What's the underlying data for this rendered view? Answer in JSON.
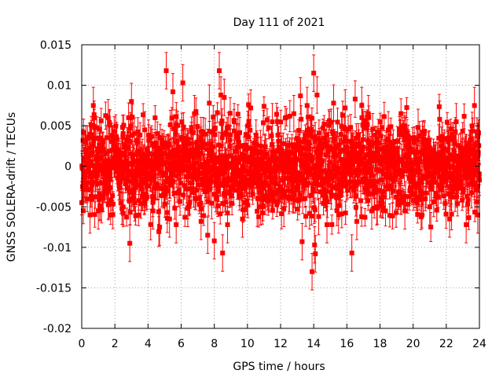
{
  "chart_data": {
    "type": "scatter",
    "title": "Day 111 of 2021",
    "xlabel": "GPS time / hours",
    "ylabel": "GNSS SOLERA-drift / TECUs",
    "xlim": [
      0,
      24
    ],
    "ylim": [
      -0.02,
      0.015
    ],
    "x_ticks": [
      0,
      2,
      4,
      6,
      8,
      10,
      12,
      14,
      16,
      18,
      20,
      22,
      24
    ],
    "x_tick_labels": [
      "0",
      "2",
      "4",
      "6",
      "8",
      "10",
      "12",
      "14",
      "16",
      "18",
      "20",
      "22",
      "24"
    ],
    "y_ticks": [
      -0.02,
      -0.015,
      -0.01,
      -0.005,
      0,
      0.005,
      0.01,
      0.015
    ],
    "y_tick_labels": [
      "-0.02",
      "-0.015",
      "-0.01",
      "-0.005",
      "0",
      "0.005",
      "0.01",
      "0.015"
    ],
    "grid": true,
    "error_bars": true,
    "series": [
      {
        "color": "#ff0000",
        "marker": "square",
        "sampling": "dense, approximately every 30 s across the full day; only notable visible outliers are listed",
        "typical_envelope": [
          -0.006,
          0.006
        ],
        "typical_error_bar": 0.0015,
        "points": [
          {
            "x": 0.5,
            "y": -0.006
          },
          {
            "x": 0.7,
            "y": 0.0075
          },
          {
            "x": 1.0,
            "y": -0.0055
          },
          {
            "x": 1.6,
            "y": 0.006
          },
          {
            "x": 2.5,
            "y": -0.005
          },
          {
            "x": 2.9,
            "y": -0.0095
          },
          {
            "x": 3.0,
            "y": 0.008
          },
          {
            "x": 3.2,
            "y": -0.0045
          },
          {
            "x": 3.8,
            "y": 0.0045
          },
          {
            "x": 4.3,
            "y": -0.0055
          },
          {
            "x": 4.7,
            "y": -0.0075
          },
          {
            "x": 5.1,
            "y": 0.0118
          },
          {
            "x": 5.3,
            "y": -0.0065
          },
          {
            "x": 5.5,
            "y": 0.0092
          },
          {
            "x": 5.7,
            "y": -0.0072
          },
          {
            "x": 6.1,
            "y": 0.0103
          },
          {
            "x": 6.4,
            "y": -0.0052
          },
          {
            "x": 6.8,
            "y": 0.0065
          },
          {
            "x": 7.2,
            "y": -0.0068
          },
          {
            "x": 7.6,
            "y": -0.0085
          },
          {
            "x": 7.7,
            "y": 0.0078
          },
          {
            "x": 8.0,
            "y": -0.0092
          },
          {
            "x": 8.3,
            "y": 0.0118
          },
          {
            "x": 8.4,
            "y": 0.0088
          },
          {
            "x": 8.5,
            "y": -0.0107
          },
          {
            "x": 8.6,
            "y": 0.0085
          },
          {
            "x": 8.8,
            "y": -0.0072
          },
          {
            "x": 9.2,
            "y": 0.0055
          },
          {
            "x": 9.7,
            "y": -0.0065
          },
          {
            "x": 10.2,
            "y": 0.0072
          },
          {
            "x": 10.8,
            "y": -0.005
          },
          {
            "x": 11.5,
            "y": 0.0055
          },
          {
            "x": 12.2,
            "y": -0.0052
          },
          {
            "x": 12.8,
            "y": 0.0065
          },
          {
            "x": 13.2,
            "y": 0.0087
          },
          {
            "x": 13.3,
            "y": -0.0093
          },
          {
            "x": 13.6,
            "y": 0.0075
          },
          {
            "x": 13.9,
            "y": -0.013
          },
          {
            "x": 14.0,
            "y": 0.0115
          },
          {
            "x": 14.05,
            "y": -0.0097
          },
          {
            "x": 14.1,
            "y": -0.0108
          },
          {
            "x": 14.2,
            "y": 0.0088
          },
          {
            "x": 14.3,
            "y": -0.0062
          },
          {
            "x": 14.8,
            "y": -0.0072
          },
          {
            "x": 15.2,
            "y": 0.0078
          },
          {
            "x": 15.5,
            "y": -0.006
          },
          {
            "x": 15.9,
            "y": 0.0072
          },
          {
            "x": 16.3,
            "y": -0.0107
          },
          {
            "x": 16.5,
            "y": 0.0083
          },
          {
            "x": 16.6,
            "y": -0.0068
          },
          {
            "x": 16.9,
            "y": 0.0075
          },
          {
            "x": 17.3,
            "y": 0.0065
          },
          {
            "x": 17.5,
            "y": -0.0055
          },
          {
            "x": 17.8,
            "y": -0.005
          },
          {
            "x": 18.5,
            "y": 0.0045
          },
          {
            "x": 19.5,
            "y": -0.0055
          },
          {
            "x": 20.3,
            "y": 0.0048
          },
          {
            "x": 21.0,
            "y": -0.005
          },
          {
            "x": 21.6,
            "y": 0.0058
          },
          {
            "x": 22.2,
            "y": -0.0065
          },
          {
            "x": 22.6,
            "y": 0.0055
          },
          {
            "x": 23.2,
            "y": -0.0072
          },
          {
            "x": 23.7,
            "y": 0.0075
          },
          {
            "x": 23.9,
            "y": -0.006
          }
        ]
      }
    ]
  }
}
